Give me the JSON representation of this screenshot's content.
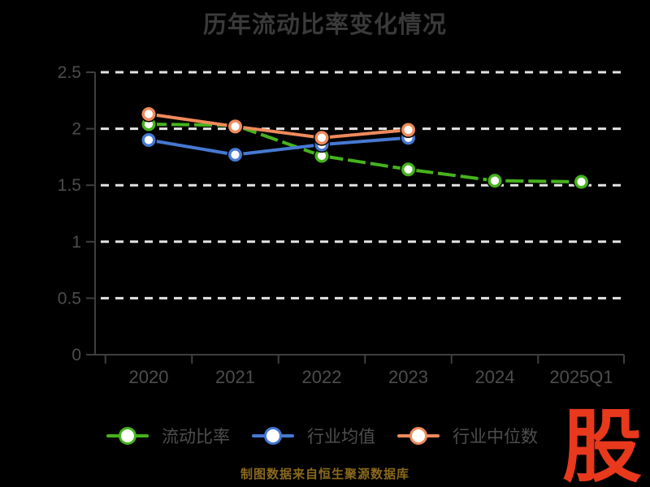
{
  "title": "历年流动比率变化情况",
  "footer": {
    "source_note": "制图数据来自恒生聚源数据库"
  },
  "logo": {
    "text": "股",
    "color": "#e8391d"
  },
  "colors": {
    "background": "#000000",
    "title_text": "#3a3a3a",
    "axis_line": "#3f3f3f",
    "axis_label": "#4d4d4d",
    "gridline": "#e3e3e3",
    "legend_text": "#4e4e4e",
    "footer_text": "#8a691c",
    "logo_red": "#e8391d",
    "series_green": "#46b31d",
    "series_blue": "#4679d2",
    "series_orange": "#ef8a5b"
  },
  "chart_data": {
    "type": "line",
    "title": "历年流动比率变化情况",
    "categories": [
      "2020",
      "2021",
      "2022",
      "2023",
      "2024",
      "2025Q1"
    ],
    "series": [
      {
        "name": "流动比率",
        "color": "#46b31d",
        "line_style": "dashed",
        "marker": "circle-white-fill",
        "values": [
          2.04,
          2.03,
          1.76,
          1.64,
          1.54,
          1.53
        ]
      },
      {
        "name": "行业均值",
        "color": "#4679d2",
        "line_style": "solid",
        "marker": "circle-white-fill",
        "values": [
          1.9,
          1.77,
          1.86,
          1.92,
          null,
          null
        ]
      },
      {
        "name": "行业中位数",
        "color": "#ef8a5b",
        "line_style": "solid",
        "marker": "circle-white-fill",
        "values": [
          2.13,
          2.02,
          1.92,
          1.99,
          null,
          null
        ]
      }
    ],
    "xlabel": "",
    "ylabel": "",
    "ylim": [
      0,
      2.5
    ],
    "yticks": [
      0,
      0.5,
      1,
      1.5,
      2,
      2.5
    ],
    "grid": "horizontal-dashed-white",
    "legend_position": "bottom-left"
  }
}
